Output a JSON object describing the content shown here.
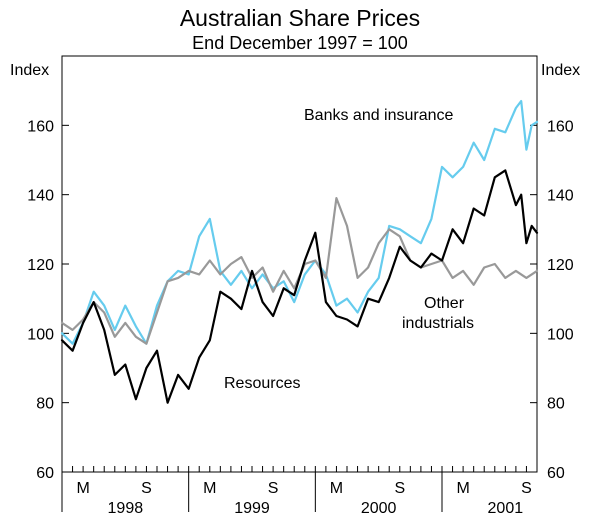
{
  "chart_data": {
    "type": "line",
    "title": "Australian Share Prices",
    "subtitle": "End December 1997 = 100",
    "ylabel_left": "Index",
    "ylabel_right": "Index",
    "ylim": [
      60,
      180
    ],
    "yticks": [
      60,
      80,
      100,
      120,
      140,
      160
    ],
    "x_domain": [
      0,
      45
    ],
    "x_month_ticks": [
      {
        "label": "M",
        "x": 2
      },
      {
        "label": "S",
        "x": 8
      },
      {
        "label": "M",
        "x": 14
      },
      {
        "label": "S",
        "x": 20
      },
      {
        "label": "M",
        "x": 26
      },
      {
        "label": "S",
        "x": 32
      },
      {
        "label": "M",
        "x": 38
      },
      {
        "label": "S",
        "x": 44
      }
    ],
    "x_year_labels": [
      {
        "label": "1998",
        "x": 6
      },
      {
        "label": "1999",
        "x": 18
      },
      {
        "label": "2000",
        "x": 30
      },
      {
        "label": "2001",
        "x": 42
      }
    ],
    "x_year_boundaries": [
      0,
      12,
      24,
      36
    ],
    "series": [
      {
        "name": "Banks and insurance",
        "color": "#66ccee",
        "x": [
          0,
          1,
          2,
          3,
          4,
          5,
          6,
          7,
          8,
          9,
          10,
          11,
          12,
          13,
          14,
          15,
          16,
          17,
          18,
          19,
          20,
          21,
          22,
          23,
          24,
          25,
          26,
          27,
          28,
          29,
          30,
          31,
          32,
          33,
          34,
          35,
          36,
          37,
          38,
          39,
          40,
          41,
          42,
          43,
          43.5,
          44,
          44.5,
          45
        ],
        "values": [
          100,
          97,
          103,
          112,
          108,
          101,
          108,
          102,
          97,
          108,
          115,
          118,
          117,
          128,
          133,
          118,
          114,
          118,
          113,
          117,
          113,
          115,
          109,
          117,
          121,
          117,
          108,
          110,
          106,
          112,
          116,
          131,
          130,
          128,
          126,
          133,
          148,
          145,
          148,
          155,
          150,
          159,
          158,
          165,
          167,
          153,
          160,
          161
        ]
      },
      {
        "name": "Other industrials",
        "color": "#999999",
        "x": [
          0,
          1,
          2,
          3,
          4,
          5,
          6,
          7,
          8,
          9,
          10,
          11,
          12,
          13,
          14,
          15,
          16,
          17,
          18,
          19,
          20,
          21,
          22,
          23,
          24,
          25,
          26,
          27,
          28,
          29,
          30,
          31,
          32,
          33,
          34,
          35,
          36,
          37,
          38,
          39,
          40,
          41,
          42,
          43,
          44,
          45
        ],
        "values": [
          103,
          101,
          104,
          109,
          106,
          99,
          103,
          99,
          97,
          106,
          115,
          116,
          118,
          117,
          121,
          117,
          120,
          122,
          116,
          119,
          112,
          118,
          113,
          120,
          121,
          116,
          139,
          131,
          116,
          119,
          126,
          130,
          128,
          121,
          119,
          120,
          121,
          116,
          118,
          114,
          119,
          120,
          116,
          118,
          116,
          118
        ]
      },
      {
        "name": "Resources",
        "color": "#000000",
        "x": [
          0,
          1,
          2,
          3,
          4,
          5,
          6,
          7,
          8,
          9,
          10,
          11,
          12,
          13,
          14,
          15,
          16,
          17,
          18,
          19,
          20,
          21,
          22,
          23,
          24,
          25,
          26,
          27,
          28,
          29,
          30,
          31,
          32,
          33,
          34,
          35,
          36,
          37,
          38,
          39,
          40,
          41,
          42,
          43,
          43.5,
          44,
          44.5,
          45
        ],
        "values": [
          98,
          95,
          103,
          109,
          101,
          88,
          91,
          81,
          90,
          95,
          80,
          88,
          84,
          93,
          98,
          112,
          110,
          107,
          118,
          109,
          105,
          113,
          111,
          121,
          129,
          109,
          105,
          104,
          102,
          110,
          109,
          116,
          125,
          121,
          119,
          123,
          121,
          130,
          126,
          136,
          134,
          145,
          147,
          137,
          140,
          126,
          131,
          129
        ]
      }
    ],
    "annotations": [
      {
        "text": "Banks and insurance",
        "series": "Banks and insurance"
      },
      {
        "text": "Other",
        "series": "Other industrials"
      },
      {
        "text": "industrials",
        "series": "Other industrials"
      },
      {
        "text": "Resources",
        "series": "Resources"
      }
    ]
  }
}
